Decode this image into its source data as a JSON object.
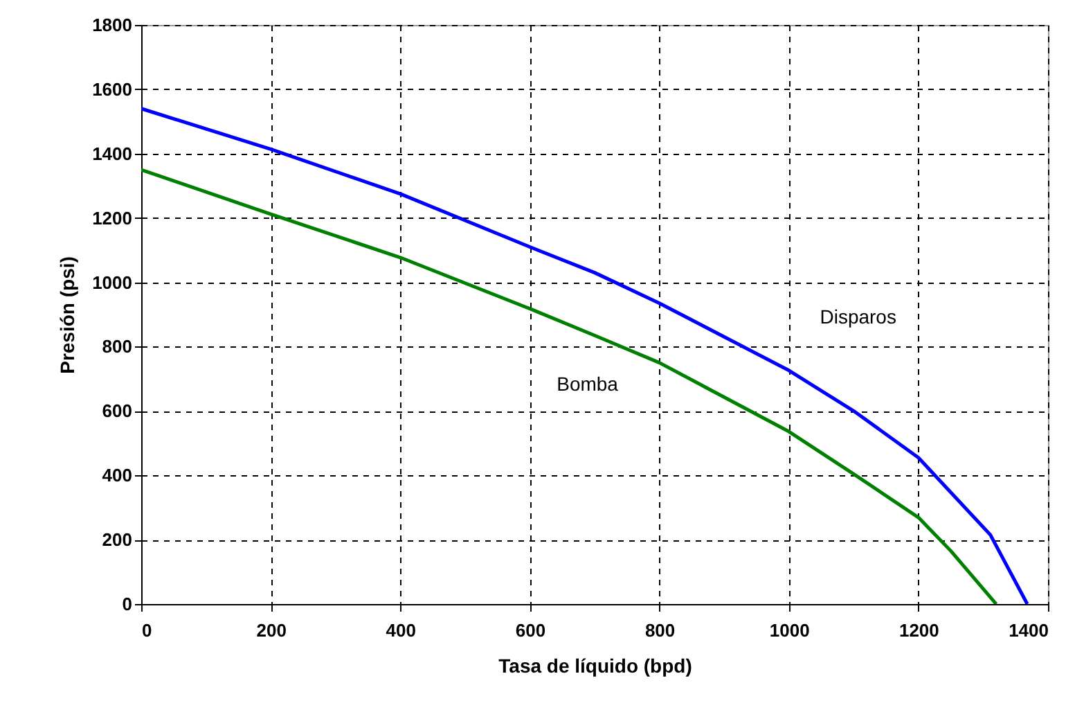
{
  "chart_data": {
    "type": "line",
    "xlabel": "Tasa de líquido (bpd)",
    "ylabel": "Presión (psi)",
    "xlim": [
      0,
      1400
    ],
    "xticks": [
      0,
      200,
      400,
      600,
      800,
      1000,
      1200,
      1400
    ],
    "ylim": [
      0,
      1800
    ],
    "yticks": [
      0,
      200,
      400,
      600,
      800,
      1000,
      1200,
      1400,
      1600,
      1800
    ],
    "grid": true,
    "line_style": "solid",
    "marker": "none",
    "series": [
      {
        "name": "Disparos",
        "color": "#0000ff",
        "x": [
          0,
          200,
          400,
          600,
          700,
          800,
          1000,
          1100,
          1200,
          1311,
          1368
        ],
        "values": [
          1540,
          1414,
          1275,
          1110,
          1030,
          935,
          726,
          600,
          455,
          215,
          0
        ]
      },
      {
        "name": "Bomba",
        "color": "#008000",
        "x": [
          0,
          200,
          400,
          600,
          700,
          800,
          1000,
          1100,
          1200,
          1250,
          1320
        ],
        "values": [
          1350,
          1212,
          1077,
          918,
          835,
          750,
          536,
          404,
          269,
          165,
          0
        ]
      }
    ]
  }
}
